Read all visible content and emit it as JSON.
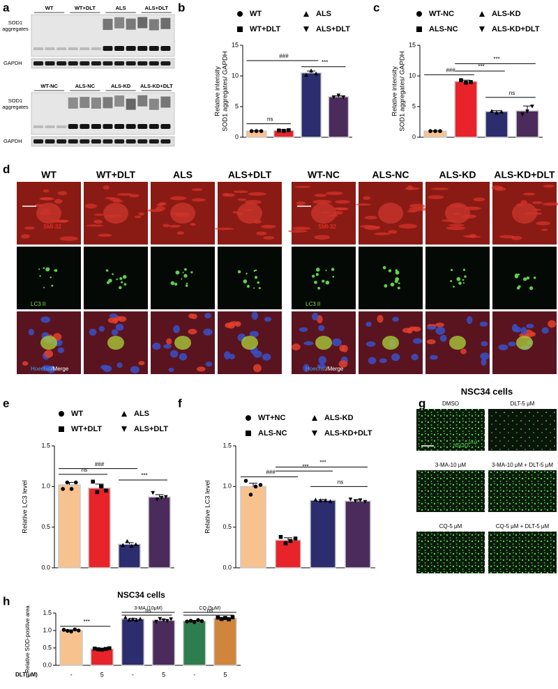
{
  "figure": {
    "panel_letters": [
      "a",
      "b",
      "c",
      "d",
      "e",
      "f",
      "g",
      "h"
    ],
    "blots": [
      {
        "lanes": [
          "WT",
          "WT+DLT",
          "ALS",
          "ALS+DLT"
        ],
        "target": [
          "SOD1",
          "aggregates"
        ],
        "control": "GAPDH"
      },
      {
        "lanes": [
          "WT-NC",
          "ALS-NC",
          "ALS-KD",
          "ALS-KD+DLT"
        ],
        "target": [
          "SOD1",
          "aggregates"
        ],
        "control": "GAPDH"
      }
    ],
    "micrographs": {
      "groups": [
        [
          "WT",
          "WT+DLT",
          "ALS",
          "ALS+DLT"
        ],
        [
          "WT-NC",
          "ALS-NC",
          "ALS-KD",
          "ALS-KD+DLT"
        ]
      ],
      "rows": [
        "SMI-32",
        "LC3 II",
        [
          "Hoechst",
          "/Merge"
        ]
      ]
    },
    "cells": {
      "title": "NSC34 cells",
      "marker": [
        "hSOD",
        "G93A"
      ],
      "conditions": [
        "DMSO",
        "DLT-5 μM",
        "3-MA-10 μM",
        "3-MA-10 μM + DLT-5 μM",
        "CQ-5 μM",
        "CQ-5 μM + DLT-5 μM"
      ]
    }
  },
  "chart_data": [
    {
      "type": "bar",
      "ylabel": [
        "Relative intensity",
        "SOD1 aggregates/ GAPDH"
      ],
      "ylim": [
        0,
        15
      ],
      "yticks": [
        0,
        5,
        10,
        15
      ],
      "series": [
        {
          "name": "WT",
          "color": "#f8c28f",
          "marker": "circle",
          "values": [
            1.0
          ],
          "errors": [
            0.05
          ],
          "points": [
            1.0,
            1.0,
            1.0
          ]
        },
        {
          "name": "WT+DLT",
          "color": "#e8232a",
          "marker": "square",
          "values": [
            1.1
          ],
          "errors": [
            0.08
          ],
          "points": [
            1.1,
            1.05,
            1.15
          ]
        },
        {
          "name": "ALS",
          "color": "#2b2d6e",
          "marker": "triangle",
          "values": [
            10.5
          ],
          "errors": [
            0.3
          ],
          "points": [
            10.2,
            10.9,
            10.4
          ]
        },
        {
          "name": "ALS+DLT",
          "color": "#4b2b5b",
          "marker": "triangle-down",
          "values": [
            6.6
          ],
          "errors": [
            0.15
          ],
          "points": [
            6.5,
            6.8,
            6.5
          ]
        }
      ],
      "annotations": [
        "ns",
        "###",
        "***"
      ]
    },
    {
      "type": "bar",
      "ylabel": [
        "Relative intensity",
        "SOD1 aggregates/ GAPDH"
      ],
      "ylim": [
        0,
        15
      ],
      "yticks": [
        0,
        5,
        10,
        15
      ],
      "series": [
        {
          "name": "WT-NC",
          "color": "#f8c28f",
          "marker": "circle",
          "values": [
            1.0
          ],
          "errors": [
            0.03
          ],
          "points": [
            1.0,
            1.0,
            1.0
          ]
        },
        {
          "name": "ALS-NC",
          "color": "#e8232a",
          "marker": "square",
          "values": [
            9.1
          ],
          "errors": [
            0.2
          ],
          "points": [
            9.3,
            8.9,
            9.0
          ]
        },
        {
          "name": "ALS-KD",
          "color": "#2b2d6e",
          "marker": "triangle",
          "values": [
            4.2
          ],
          "errors": [
            0.15
          ],
          "points": [
            4.3,
            4.0,
            4.2
          ]
        },
        {
          "name": "ALS-KD+DLT",
          "color": "#4b2b5b",
          "marker": "triangle-down",
          "values": [
            4.3
          ],
          "errors": [
            0.8
          ],
          "points": [
            3.7,
            4.2,
            5.0
          ]
        }
      ],
      "annotations": [
        "###",
        "***",
        "***",
        "ns"
      ]
    },
    {
      "type": "bar",
      "ylabel": "Relative LC3 level",
      "ylim": [
        0,
        1.5
      ],
      "yticks": [
        {
          "value": 0,
          "label": "0.0"
        },
        0.5,
        {
          "value": 1,
          "label": "1.0"
        },
        1.5
      ],
      "series": [
        {
          "name": "WT",
          "color": "#f8c28f",
          "marker": "circle",
          "values": [
            1.02
          ],
          "errors": [
            0.03
          ],
          "points": [
            0.97,
            1.05,
            0.97,
            1.05
          ]
        },
        {
          "name": "WT+DLT",
          "color": "#e8232a",
          "marker": "square",
          "values": [
            0.98
          ],
          "errors": [
            0.05
          ],
          "points": [
            1.06,
            0.93,
            1.0,
            0.95
          ]
        },
        {
          "name": "ALS",
          "color": "#2b2d6e",
          "marker": "triangle",
          "values": [
            0.29
          ],
          "errors": [
            0.02
          ],
          "points": [
            0.28,
            0.33,
            0.27,
            0.29
          ]
        },
        {
          "name": "ALS+DLT",
          "color": "#4b2b5b",
          "marker": "triangle-down",
          "values": [
            0.87
          ],
          "errors": [
            0.03
          ],
          "points": [
            0.92,
            0.84,
            0.86,
            0.87
          ]
        }
      ],
      "annotations": [
        "ns",
        "###",
        "***"
      ]
    },
    {
      "type": "bar",
      "ylabel": "Relative LC3 level",
      "ylim": [
        0,
        1.5
      ],
      "yticks": [
        {
          "value": 0,
          "label": "0.0"
        },
        0.5,
        {
          "value": 1,
          "label": "1.0"
        },
        1.5
      ],
      "series": [
        {
          "name": "WT+NC",
          "color": "#f8c28f",
          "marker": "circle",
          "values": [
            1.0
          ],
          "errors": [
            0.04
          ],
          "points": [
            1.07,
            0.9,
            1.0,
            1.02
          ]
        },
        {
          "name": "ALS-NC",
          "color": "#e8232a",
          "marker": "square",
          "values": [
            0.34
          ],
          "errors": [
            0.03
          ],
          "points": [
            0.38,
            0.3,
            0.33,
            0.36
          ]
        },
        {
          "name": "ALS-KD",
          "color": "#2b2d6e",
          "marker": "triangle",
          "values": [
            0.83
          ],
          "errors": [
            0.01
          ],
          "points": [
            0.84,
            0.83,
            0.83,
            0.82
          ]
        },
        {
          "name": "ALS-KD+DLT",
          "color": "#4b2b5b",
          "marker": "triangle-down",
          "values": [
            0.82
          ],
          "errors": [
            0.02
          ],
          "points": [
            0.84,
            0.82,
            0.83,
            0.81
          ]
        }
      ],
      "annotations": [
        "###",
        "***",
        "***",
        "ns"
      ]
    },
    {
      "type": "bar",
      "title": "NSC34 cells",
      "ylabel": "Relative SOD-positive area",
      "xlabel": "DLT(μM)",
      "ylim": [
        0,
        1.5
      ],
      "yticks": [
        {
          "value": 0,
          "label": "0.0"
        },
        0.5,
        {
          "value": 1,
          "label": "1.0"
        },
        1.5
      ],
      "categories": [
        "-",
        "5",
        "-",
        "5",
        "-",
        "5"
      ],
      "values": [
        1.0,
        0.47,
        1.33,
        1.29,
        1.27,
        1.35
      ],
      "errors": [
        0.02,
        0.01,
        0.02,
        0.03,
        0.02,
        0.02
      ],
      "colors": [
        "#f8c28f",
        "#e8232a",
        "#2b2d6e",
        "#4b2b5b",
        "#2e7d4f",
        "#d0843c"
      ],
      "points": [
        [
          1.02,
          0.99,
          0.97,
          1.03,
          1.0
        ],
        [
          0.48,
          0.46,
          0.45,
          0.47,
          0.49
        ],
        [
          1.38,
          1.31,
          1.33,
          1.3,
          1.34
        ],
        [
          1.25,
          1.33,
          1.29,
          1.27,
          1.32
        ],
        [
          1.26,
          1.28,
          1.24,
          1.3,
          1.27
        ],
        [
          1.37,
          1.33,
          1.36,
          1.32,
          1.38
        ]
      ],
      "group_labels": [
        "3-MA (10μM)",
        "CQ (5μM)"
      ],
      "annotations": [
        "***",
        "ns",
        "ns"
      ]
    }
  ]
}
